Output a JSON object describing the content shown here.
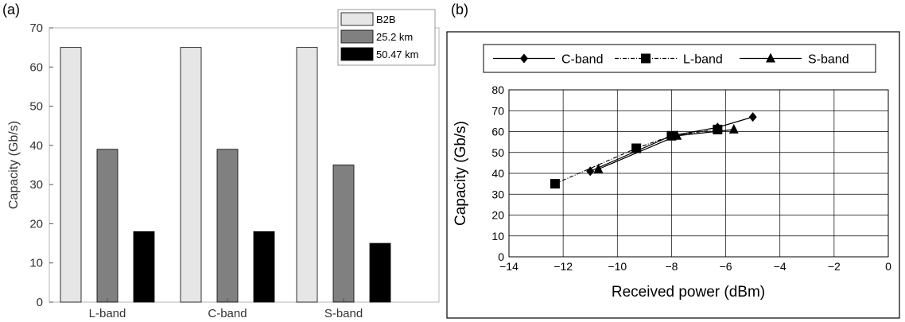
{
  "panel_labels": [
    "(a)",
    "(b)"
  ],
  "chart_data": [
    {
      "type": "bar",
      "title": "",
      "xlabel": "",
      "ylabel": "Capacity (Gb/s)",
      "ylim": [
        0,
        70
      ],
      "yticks": [
        0,
        10,
        20,
        30,
        40,
        50,
        60,
        70
      ],
      "categories": [
        "L-band",
        "C-band",
        "S-band"
      ],
      "series": [
        {
          "name": "B2B",
          "color": "#e6e6e6",
          "values": [
            65,
            65,
            65
          ]
        },
        {
          "name": "25.2 km",
          "color": "#808080",
          "values": [
            39,
            39,
            35
          ]
        },
        {
          "name": "50.47 km",
          "color": "#000000",
          "values": [
            18,
            18,
            15
          ]
        }
      ],
      "legend_position": "top-right",
      "grid": false
    },
    {
      "type": "line",
      "title": "",
      "xlabel": "Received power (dBm)",
      "ylabel": "Capacity (Gb/s)",
      "xlim": [
        -14,
        0
      ],
      "ylim": [
        0,
        80
      ],
      "xticks": [
        -14,
        -12,
        -10,
        -8,
        -6,
        -4,
        -2,
        0
      ],
      "xtick_labels": [
        "−14",
        "−12",
        "−10",
        "−8",
        "−6",
        "−4",
        "−2",
        "0"
      ],
      "yticks": [
        0,
        10,
        20,
        30,
        40,
        50,
        60,
        70,
        80
      ],
      "grid": true,
      "legend_position": "top",
      "series": [
        {
          "name": "C-band",
          "marker": "diamond",
          "dash": "solid",
          "x": [
            -11.0,
            -8.0,
            -6.3,
            -5.0
          ],
          "y": [
            41,
            58,
            62,
            67
          ]
        },
        {
          "name": "L-band",
          "marker": "square",
          "dash": "dashdot",
          "x": [
            -12.3,
            -9.3,
            -8.0,
            -6.3
          ],
          "y": [
            35,
            52,
            58,
            61
          ]
        },
        {
          "name": "S-band",
          "marker": "triangle",
          "dash": "solid",
          "x": [
            -10.7,
            -7.8,
            -5.7
          ],
          "y": [
            42,
            58,
            61
          ]
        }
      ]
    }
  ]
}
